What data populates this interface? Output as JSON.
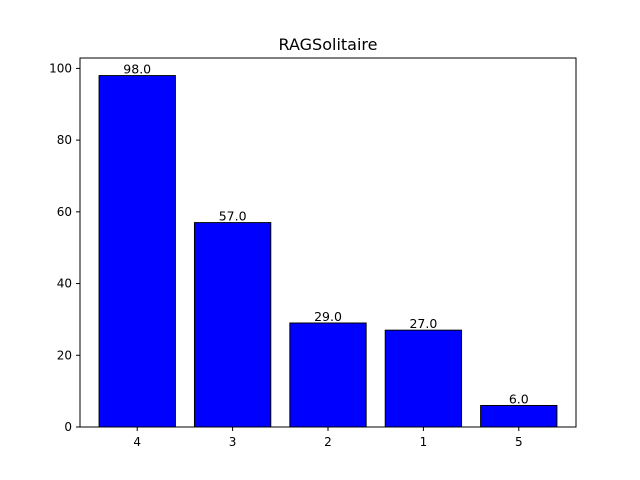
{
  "chart_data": {
    "type": "bar",
    "title": "RAGSolitaire",
    "xlabel": "",
    "ylabel": "",
    "categories": [
      "4",
      "3",
      "2",
      "1",
      "5"
    ],
    "values": [
      98.0,
      57.0,
      29.0,
      27.0,
      6.0
    ],
    "value_labels": [
      "98.0",
      "57.0",
      "29.0",
      "27.0",
      "6.0"
    ],
    "yticks": [
      0,
      20,
      40,
      60,
      80,
      100
    ],
    "ylim": [
      0,
      102.9
    ],
    "grid": false,
    "bar_color": "#0000ff",
    "edge_color": "#000000"
  }
}
